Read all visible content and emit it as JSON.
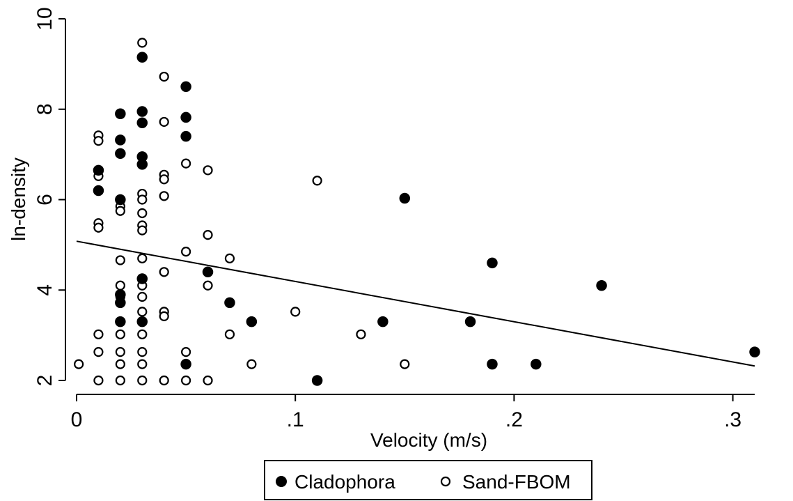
{
  "chart_data": {
    "type": "scatter",
    "xlabel": "Velocity (m/s)",
    "ylabel": "ln-density",
    "xlim": [
      0,
      0.31
    ],
    "ylim": [
      2,
      10
    ],
    "x_ticks": [
      0,
      0.1,
      0.2,
      0.3
    ],
    "x_tick_labels": [
      "0",
      ".1",
      ".2",
      ".3"
    ],
    "y_ticks": [
      2,
      4,
      6,
      8,
      10
    ],
    "y_tick_labels": [
      "2",
      "4",
      "6",
      "8",
      "10"
    ],
    "grid": false,
    "legend_position": "bottom-center",
    "series": [
      {
        "name": "Cladophora",
        "marker": "filled-circle",
        "color": "#000000",
        "points": [
          [
            0.01,
            6.65
          ],
          [
            0.01,
            6.2
          ],
          [
            0.02,
            7.9
          ],
          [
            0.02,
            7.32
          ],
          [
            0.02,
            7.02
          ],
          [
            0.02,
            6.0
          ],
          [
            0.02,
            3.9
          ],
          [
            0.02,
            3.72
          ],
          [
            0.02,
            3.3
          ],
          [
            0.03,
            9.15
          ],
          [
            0.03,
            7.95
          ],
          [
            0.03,
            7.7
          ],
          [
            0.03,
            6.95
          ],
          [
            0.03,
            6.78
          ],
          [
            0.03,
            4.25
          ],
          [
            0.03,
            3.3
          ],
          [
            0.05,
            8.5
          ],
          [
            0.05,
            7.82
          ],
          [
            0.05,
            7.4
          ],
          [
            0.05,
            2.36
          ],
          [
            0.06,
            4.4
          ],
          [
            0.07,
            3.72
          ],
          [
            0.08,
            3.3
          ],
          [
            0.11,
            2.0
          ],
          [
            0.14,
            3.3
          ],
          [
            0.15,
            6.03
          ],
          [
            0.18,
            3.3
          ],
          [
            0.19,
            4.6
          ],
          [
            0.19,
            2.36
          ],
          [
            0.21,
            2.36
          ],
          [
            0.24,
            4.1
          ],
          [
            0.31,
            2.63
          ]
        ]
      },
      {
        "name": "Sand-FBOM",
        "marker": "open-circle",
        "color": "#000000",
        "points": [
          [
            0.001,
            2.36
          ],
          [
            0.01,
            7.42
          ],
          [
            0.01,
            7.3
          ],
          [
            0.01,
            6.52
          ],
          [
            0.01,
            5.48
          ],
          [
            0.01,
            5.38
          ],
          [
            0.01,
            3.02
          ],
          [
            0.01,
            2.63
          ],
          [
            0.01,
            2.0
          ],
          [
            0.02,
            5.85
          ],
          [
            0.02,
            5.75
          ],
          [
            0.02,
            4.66
          ],
          [
            0.02,
            4.1
          ],
          [
            0.02,
            3.85
          ],
          [
            0.02,
            3.02
          ],
          [
            0.02,
            2.63
          ],
          [
            0.02,
            2.36
          ],
          [
            0.02,
            2.0
          ],
          [
            0.03,
            9.47
          ],
          [
            0.03,
            6.13
          ],
          [
            0.03,
            6.0
          ],
          [
            0.03,
            5.7
          ],
          [
            0.03,
            5.43
          ],
          [
            0.03,
            5.32
          ],
          [
            0.03,
            4.7
          ],
          [
            0.03,
            4.1
          ],
          [
            0.03,
            3.85
          ],
          [
            0.03,
            3.52
          ],
          [
            0.03,
            3.02
          ],
          [
            0.03,
            2.63
          ],
          [
            0.03,
            2.36
          ],
          [
            0.03,
            2.0
          ],
          [
            0.04,
            8.72
          ],
          [
            0.04,
            7.72
          ],
          [
            0.04,
            6.55
          ],
          [
            0.04,
            6.45
          ],
          [
            0.04,
            6.08
          ],
          [
            0.04,
            4.4
          ],
          [
            0.04,
            3.52
          ],
          [
            0.04,
            3.42
          ],
          [
            0.04,
            2.0
          ],
          [
            0.05,
            6.8
          ],
          [
            0.05,
            4.85
          ],
          [
            0.05,
            2.63
          ],
          [
            0.05,
            2.0
          ],
          [
            0.06,
            6.65
          ],
          [
            0.06,
            5.22
          ],
          [
            0.06,
            4.1
          ],
          [
            0.06,
            2.0
          ],
          [
            0.07,
            4.7
          ],
          [
            0.07,
            3.02
          ],
          [
            0.08,
            2.36
          ],
          [
            0.1,
            3.52
          ],
          [
            0.11,
            6.42
          ],
          [
            0.13,
            3.02
          ],
          [
            0.15,
            2.36
          ]
        ]
      }
    ],
    "fit_line": {
      "type": "linear",
      "points": [
        [
          0.0,
          5.08
        ],
        [
          0.31,
          2.32
        ]
      ]
    }
  },
  "legend": {
    "items": [
      {
        "label": "Cladophora",
        "marker": "filled-circle"
      },
      {
        "label": "Sand-FBOM",
        "marker": "open-circle"
      }
    ]
  }
}
